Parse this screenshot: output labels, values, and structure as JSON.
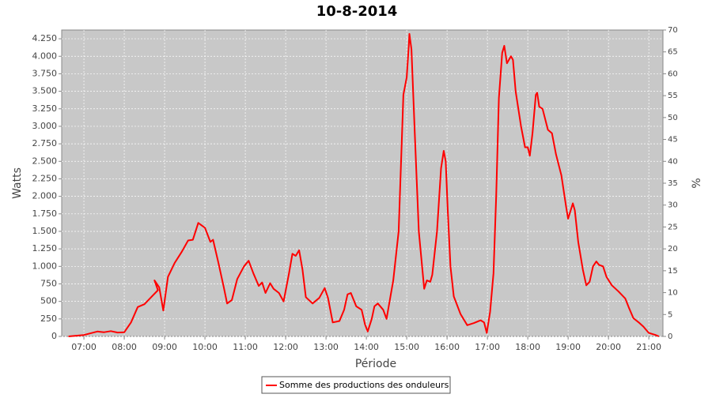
{
  "chart_data": {
    "type": "line",
    "title": "10-8-2014",
    "x_label": "Période",
    "y_label": "Watts",
    "y2_label": "%",
    "xlim": [
      "06:27",
      "21:21"
    ],
    "xticks": [
      "07:00",
      "08:00",
      "09:00",
      "10:00",
      "11:00",
      "12:00",
      "13:00",
      "14:00",
      "15:00",
      "16:00",
      "17:00",
      "18:00",
      "19:00",
      "20:00",
      "21:00"
    ],
    "ylim": [
      0,
      4375
    ],
    "yticks": [
      0,
      250,
      500,
      750,
      {
        "value": 1000,
        "label": "1.000"
      },
      {
        "value": 1250,
        "label": "1.250"
      },
      {
        "value": 1500,
        "label": "1.500"
      },
      {
        "value": 1750,
        "label": "1.750"
      },
      {
        "value": 2000,
        "label": "2.000"
      },
      {
        "value": 2250,
        "label": "2.250"
      },
      {
        "value": 2500,
        "label": "2.500"
      },
      {
        "value": 2750,
        "label": "2.750"
      },
      {
        "value": 3000,
        "label": "3.000"
      },
      {
        "value": 3250,
        "label": "3.250"
      },
      {
        "value": 3500,
        "label": "3.500"
      },
      {
        "value": 3750,
        "label": "3.750"
      },
      {
        "value": 4000,
        "label": "4.000"
      },
      {
        "value": 4250,
        "label": "4.250"
      }
    ],
    "y2lim": [
      0,
      70
    ],
    "y2ticks": [
      0,
      5,
      10,
      15,
      20,
      25,
      30,
      35,
      40,
      45,
      50,
      55,
      60,
      65,
      70
    ],
    "grid": true,
    "background": "#c8c8c8",
    "legend": "bottom",
    "x": [
      "06:37",
      "07:00",
      "07:20",
      "07:30",
      "07:40",
      "07:50",
      "08:00",
      "08:10",
      "08:20",
      "08:30",
      "08:40",
      "08:50",
      "08:45",
      "08:52",
      "08:58",
      "09:05",
      "09:15",
      "09:25",
      "09:35",
      "09:42",
      "09:50",
      "10:00",
      "10:08",
      "10:12",
      "10:20",
      "10:28",
      "10:33",
      "10:40",
      "10:48",
      "10:58",
      "11:05",
      "11:12",
      "11:20",
      "11:25",
      "11:30",
      "11:37",
      "11:42",
      "11:50",
      "11:57",
      "12:05",
      "12:10",
      "12:15",
      "12:20",
      "12:25",
      "12:30",
      "12:40",
      "12:50",
      "12:58",
      "13:03",
      "13:10",
      "13:20",
      "13:27",
      "13:32",
      "13:37",
      "13:45",
      "13:53",
      "13:58",
      "14:02",
      "14:08",
      "14:12",
      "14:17",
      "14:25",
      "14:30",
      "14:40",
      "14:48",
      "14:52",
      "14:55",
      "15:00",
      "15:03",
      "15:04",
      "15:07",
      "15:12",
      "15:18",
      "15:26",
      "15:30",
      "15:35",
      "15:38",
      "15:45",
      "15:51",
      "15:55",
      "15:58",
      "16:01",
      "16:05",
      "16:10",
      "16:20",
      "16:30",
      "16:40",
      "16:50",
      "16:55",
      "16:59",
      "17:04",
      "17:09",
      "17:13",
      "17:17",
      "17:22",
      "17:25",
      "17:29",
      "17:35",
      "17:38",
      "17:42",
      "17:50",
      "17:56",
      "18:00",
      "18:03",
      "18:07",
      "18:12",
      "18:14",
      "18:17",
      "18:22",
      "18:30",
      "18:36",
      "18:42",
      "18:50",
      "18:57",
      "19:00",
      "19:07",
      "19:10",
      "19:15",
      "19:22",
      "19:27",
      "19:32",
      "19:37",
      "19:42",
      "19:46",
      "19:52",
      "19:57",
      "20:05",
      "20:15",
      "20:25",
      "20:30",
      "20:37",
      "20:45",
      "20:52",
      "21:00",
      "21:10",
      "21:15"
    ],
    "series": [
      {
        "name": "Somme des productions des onduleurs",
        "color": "#ff0000",
        "values": [
          0,
          20,
          70,
          60,
          75,
          55,
          60,
          200,
          420,
          460,
          560,
          660,
          800,
          700,
          370,
          850,
          1050,
          1200,
          1370,
          1380,
          1620,
          1550,
          1350,
          1380,
          1050,
          700,
          470,
          520,
          820,
          1000,
          1080,
          900,
          720,
          770,
          620,
          760,
          680,
          620,
          500,
          900,
          1180,
          1150,
          1230,
          960,
          560,
          470,
          550,
          690,
          550,
          200,
          220,
          380,
          600,
          620,
          430,
          380,
          170,
          70,
          250,
          430,
          470,
          380,
          250,
          800,
          1500,
          2600,
          3450,
          3700,
          4150,
          4320,
          4100,
          2900,
          1500,
          680,
          800,
          780,
          880,
          1500,
          2400,
          2650,
          2500,
          1800,
          1000,
          570,
          320,
          160,
          190,
          230,
          200,
          50,
          350,
          900,
          2000,
          3400,
          4050,
          4150,
          3900,
          4000,
          3950,
          3500,
          3000,
          2700,
          2700,
          2580,
          2900,
          3450,
          3480,
          3280,
          3250,
          2950,
          2900,
          2600,
          2300,
          1850,
          1680,
          1900,
          1800,
          1350,
          950,
          730,
          780,
          1000,
          1070,
          1020,
          1000,
          850,
          730,
          640,
          540,
          420,
          260,
          200,
          140,
          50,
          20,
          0
        ]
      }
    ]
  }
}
